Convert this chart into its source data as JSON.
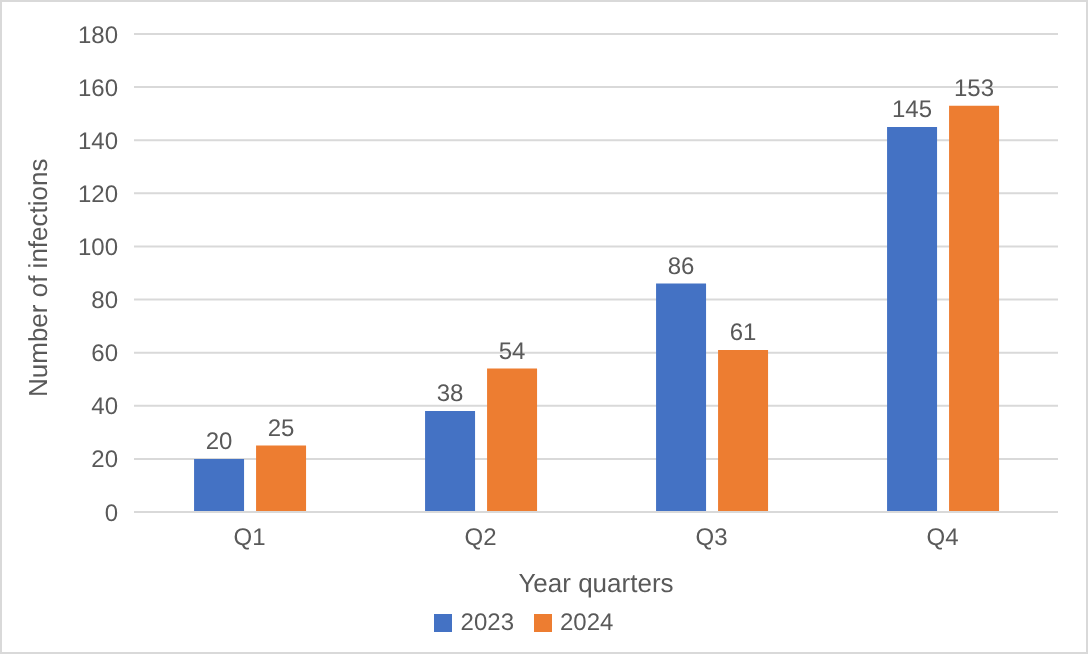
{
  "chart_data": {
    "type": "bar",
    "xlabel": "Year quarters",
    "ylabel": "Number of infections",
    "categories": [
      "Q1",
      "Q2",
      "Q3",
      "Q4"
    ],
    "series": [
      {
        "name": "2023",
        "color": "#4472c4",
        "values": [
          20,
          38,
          86,
          145
        ]
      },
      {
        "name": "2024",
        "color": "#ed7d31",
        "values": [
          25,
          54,
          61,
          153
        ]
      }
    ],
    "ylim": [
      0,
      180
    ],
    "yticks": [
      0,
      20,
      40,
      60,
      80,
      100,
      120,
      140,
      160,
      180
    ],
    "grid": "y",
    "legend": "bottom",
    "data_labels": true
  }
}
